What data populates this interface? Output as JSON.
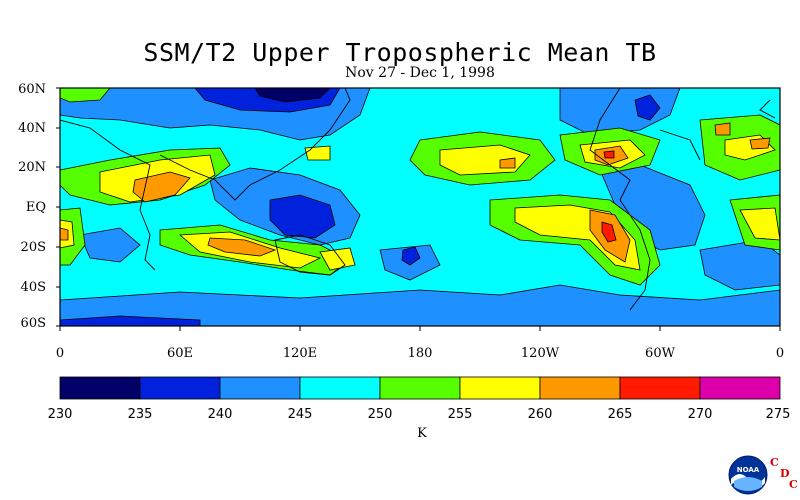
{
  "title": "SSM/T2 Upper Tropospheric Mean TB",
  "subtitle": "Nov 27 - Dec 1, 1998",
  "lat_ticks": [
    "60N",
    "40N",
    "20N",
    "EQ",
    "20S",
    "40S",
    "60S"
  ],
  "lon_ticks": [
    "0",
    "60E",
    "120E",
    "180",
    "120W",
    "60W",
    "0"
  ],
  "colorbar": {
    "units": "K",
    "levels": [
      "230",
      "235",
      "240",
      "245",
      "250",
      "255",
      "260",
      "265",
      "270",
      "275"
    ],
    "colors": [
      "#000066",
      "#0022dd",
      "#1e90ff",
      "#00ffff",
      "#55ff00",
      "#ffff00",
      "#ff9900",
      "#ff1a00",
      "#dd00aa"
    ]
  },
  "logo": {
    "text": "NOAA",
    "mark_letters": [
      "C",
      "D",
      "C"
    ]
  }
}
